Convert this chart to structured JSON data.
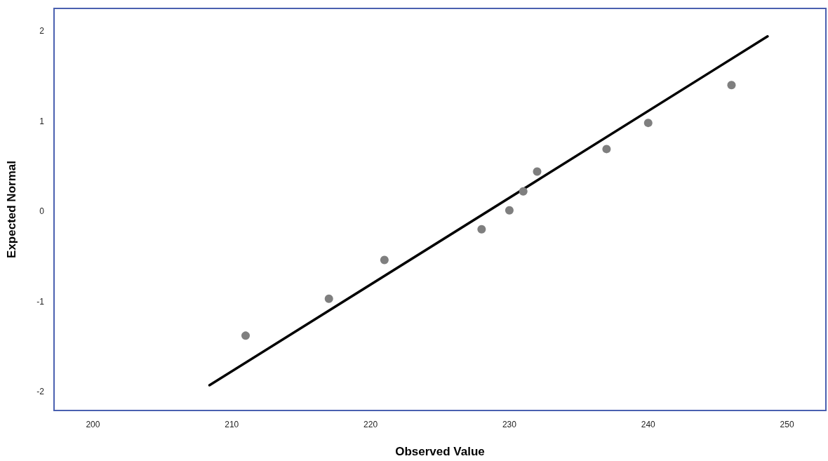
{
  "chart_data": {
    "type": "scatter",
    "xlabel": "Observed Value",
    "ylabel": "Expected Normal",
    "series": [
      {
        "color": "#7f7f7f",
        "x": [
          211,
          217,
          221,
          228,
          230,
          231,
          232,
          237,
          240,
          246
        ],
        "values": [
          -1.38,
          -0.97,
          -0.54,
          -0.2,
          0.01,
          0.22,
          0.44,
          0.69,
          0.98,
          1.4
        ]
      },
      {
        "type": "line",
        "color": "#000000",
        "marker": "none",
        "x": [
          208.4,
          248.6
        ],
        "values": [
          -1.93,
          1.94
        ]
      }
    ],
    "xlim": [
      197.2,
      252.8
    ],
    "ylim": [
      -2.21,
      2.25
    ],
    "xticks": [
      200,
      210,
      220,
      230,
      240,
      250
    ],
    "yticks": [
      -2,
      -1,
      0,
      1,
      2
    ],
    "marker": "circle"
  }
}
